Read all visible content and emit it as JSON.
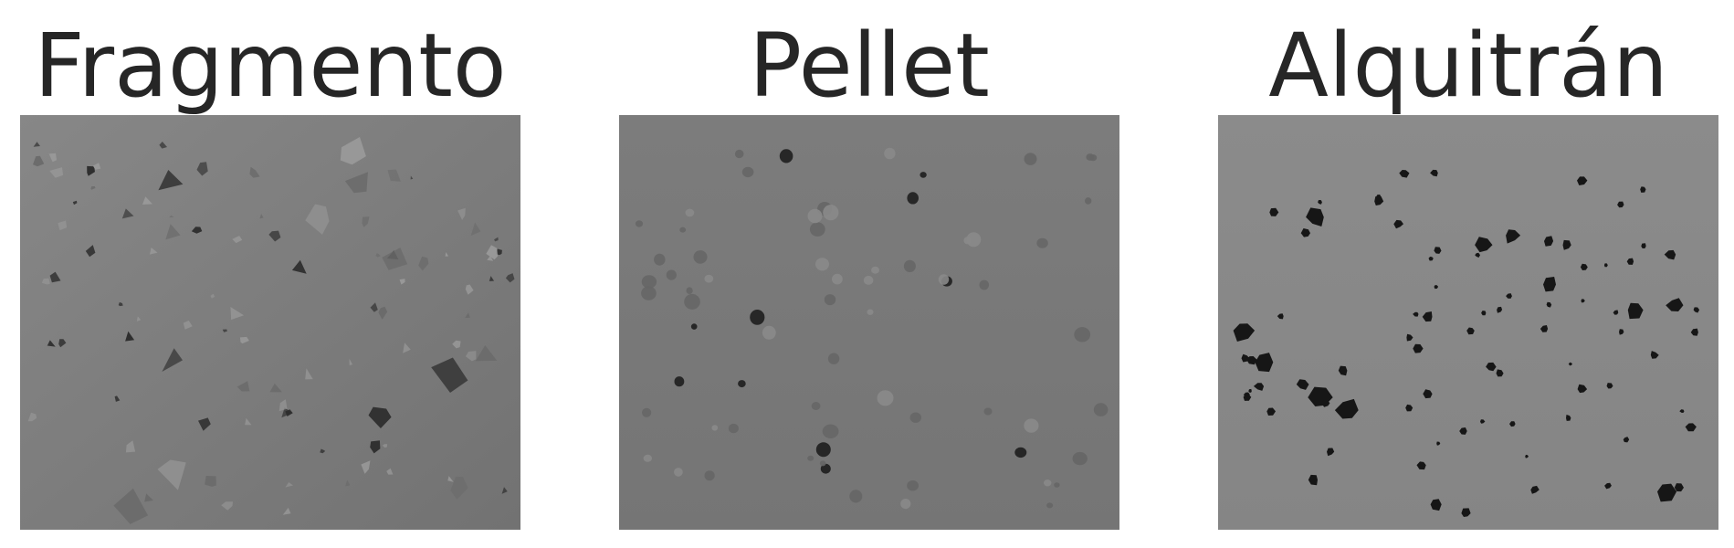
{
  "panels": [
    {
      "title": "Fragmento",
      "description": "Gray background scattered with small translucent plastic fragments"
    },
    {
      "title": "Pellet",
      "description": "Gray background with round plastic pellets"
    },
    {
      "title": "Alquitrán",
      "description": "Light gray background with dark tar particles"
    }
  ],
  "colors": {
    "title_text": "#262626",
    "fragmento_bg": "#7e7e7e",
    "pellet_bg": "#7a7a7a",
    "alquitran_bg": "#8a8a8a",
    "particle_dark": "#1c1c1c"
  }
}
